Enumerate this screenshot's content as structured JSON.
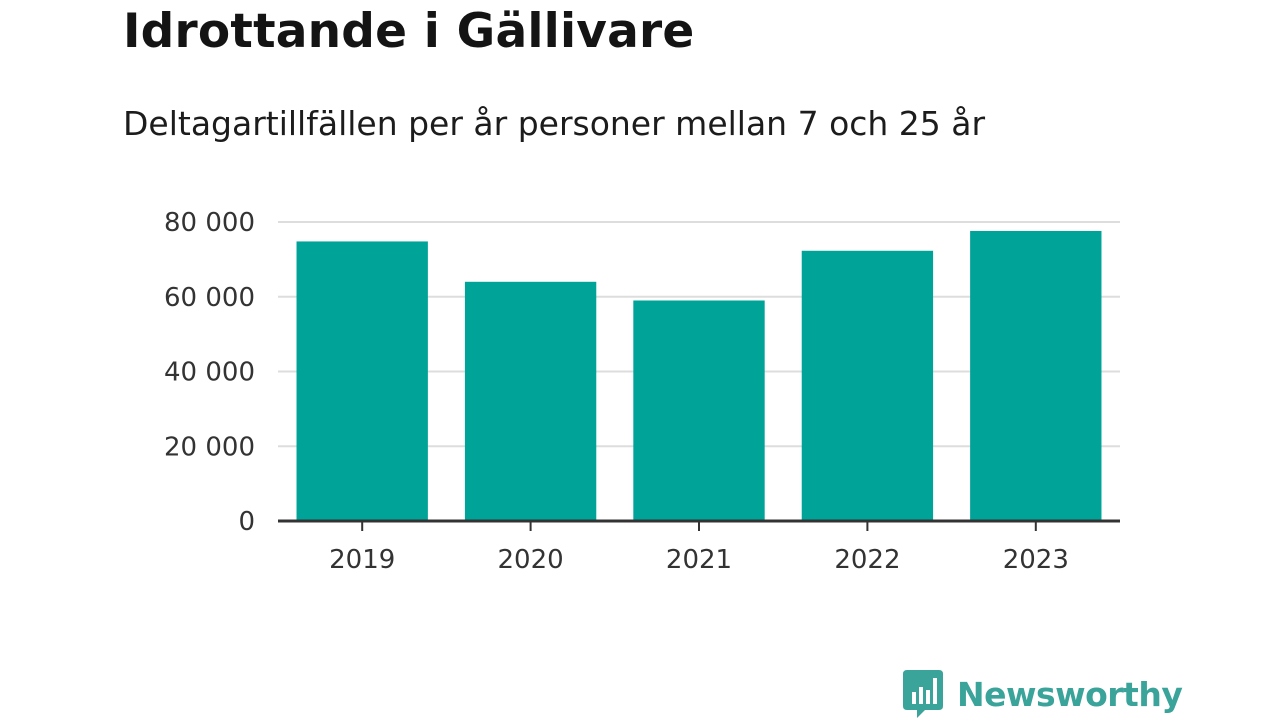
{
  "header": {
    "title": "Idrottande i Gällivare",
    "subtitle": "Deltagartillfällen per år personer mellan 7 och 25 år"
  },
  "chart_data": {
    "type": "bar",
    "categories": [
      "2019",
      "2020",
      "2021",
      "2022",
      "2023"
    ],
    "values": [
      74800,
      64000,
      59000,
      72300,
      77600
    ],
    "ylim": [
      0,
      80000
    ],
    "yticks": [
      0,
      20000,
      40000,
      60000,
      80000
    ],
    "ytick_labels": [
      "0",
      "20 000",
      "40 000",
      "60 000",
      "80 000"
    ],
    "xlabel": "",
    "ylabel": "",
    "grid": true,
    "bar_color": "#00a398",
    "grid_color": "#dddddd",
    "axis_color": "#333333"
  },
  "brand": {
    "name": "Newsworthy",
    "icon": "newsworthy-logo-icon",
    "color": "#3aa39a"
  }
}
